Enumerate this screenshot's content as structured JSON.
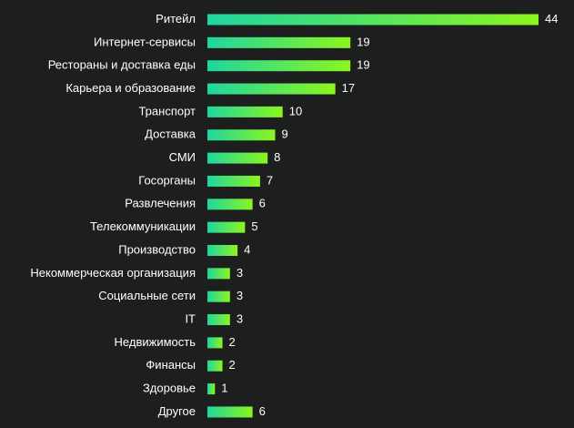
{
  "chart_data": {
    "type": "bar",
    "orientation": "horizontal",
    "categories": [
      "Ритейл",
      "Интернет-сервисы",
      "Рестораны и доставка еды",
      "Карьера и образование",
      "Транспорт",
      "Доставка",
      "СМИ",
      "Госорганы",
      "Развлечения",
      "Телекоммуникации",
      "Производство",
      "Некоммерческая организация",
      "Социальные сети",
      "IT",
      "Недвижимость",
      "Финансы",
      "Здоровье",
      "Другое"
    ],
    "values": [
      44,
      19,
      19,
      17,
      10,
      9,
      8,
      7,
      6,
      5,
      4,
      3,
      3,
      3,
      2,
      2,
      1,
      6
    ],
    "xlim": [
      0,
      44
    ],
    "grid": false,
    "legend": "none"
  },
  "colors": {
    "background": "#1d1f1e",
    "bar_gradient_start": "#1fd6a0",
    "bar_gradient_end": "#8cf51e",
    "text": "#ffffff"
  }
}
